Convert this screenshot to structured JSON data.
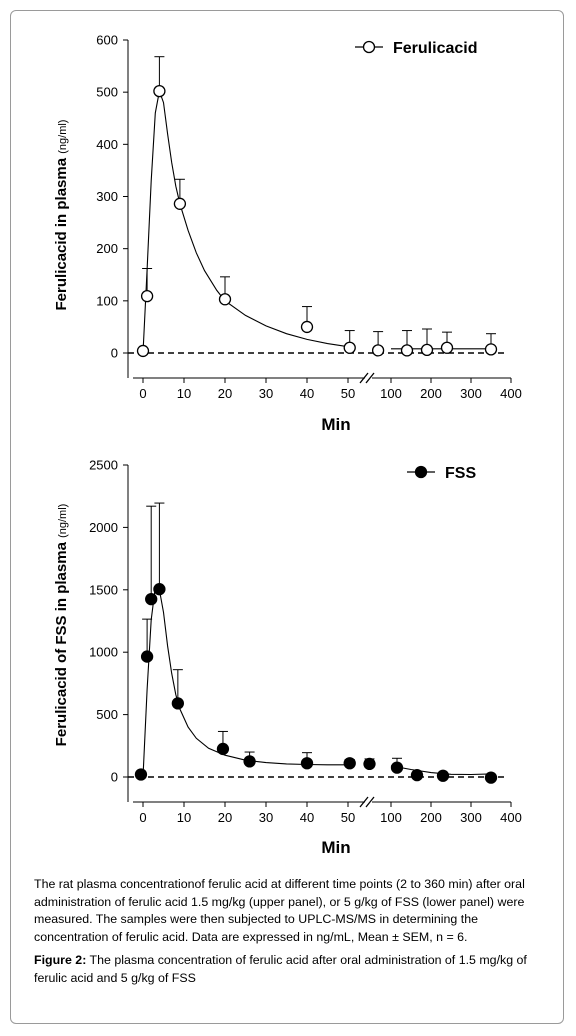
{
  "chart_data": [
    {
      "type": "scatter",
      "ylabel": "Ferulicacid in plasma",
      "yunit": "(ng/ml)",
      "xlabel": "Min",
      "ylim": [
        0,
        600
      ],
      "yticks": [
        "0",
        "100",
        "200",
        "300",
        "400",
        "500",
        "600"
      ],
      "xticks": [
        "0",
        "10",
        "20",
        "30",
        "40",
        "50",
        "100",
        "200",
        "300",
        "400"
      ],
      "x_axis_break": "between 50 and 100 min",
      "baseline": "dashed line at 0",
      "series": [
        {
          "name": "Ferulicacid",
          "marker": "open-circle",
          "points": [
            {
              "x": 0,
              "y": 4,
              "sem": 0
            },
            {
              "x": 1,
              "y": 109,
              "sem": 53
            },
            {
              "x": 4,
              "y": 502,
              "sem": 66
            },
            {
              "x": 9,
              "y": 286,
              "sem": 47
            },
            {
              "x": 20,
              "y": 103,
              "sem": 43
            },
            {
              "x": 40,
              "y": 50,
              "sem": 39
            },
            {
              "x": 52,
              "y": 10,
              "sem": 33
            },
            {
              "x": 85,
              "y": 5,
              "sem": 36
            },
            {
              "x": 140,
              "y": 5,
              "sem": 38
            },
            {
              "x": 190,
              "y": 6,
              "sem": 40
            },
            {
              "x": 240,
              "y": 10,
              "sem": 30
            },
            {
              "x": 350,
              "y": 7,
              "sem": 30
            }
          ],
          "fit_curve": [
            [
              0,
              0
            ],
            [
              1,
              160
            ],
            [
              2,
              330
            ],
            [
              3,
              460
            ],
            [
              4,
              502
            ],
            [
              5,
              480
            ],
            [
              6,
              420
            ],
            [
              7,
              365
            ],
            [
              8,
              320
            ],
            [
              9,
              286
            ],
            [
              11,
              235
            ],
            [
              13,
              192
            ],
            [
              15,
              158
            ],
            [
              18,
              120
            ],
            [
              20,
              100
            ],
            [
              25,
              72
            ],
            [
              30,
              52
            ],
            [
              35,
              37
            ],
            [
              40,
              26
            ],
            [
              45,
              18
            ],
            [
              50,
              12
            ],
            [
              55,
              9
            ],
            [
              60,
              8
            ],
            [
              100,
              8
            ],
            [
              200,
              8
            ],
            [
              300,
              8
            ],
            [
              350,
              8
            ]
          ]
        }
      ]
    },
    {
      "type": "scatter",
      "ylabel": "Ferulicacid of FSS in plasma",
      "yunit": "(ng/ml)",
      "xlabel": "Min",
      "ylim": [
        0,
        2500
      ],
      "yticks": [
        "0",
        "500",
        "1000",
        "1500",
        "2000",
        "2500"
      ],
      "xticks": [
        "0",
        "10",
        "20",
        "30",
        "40",
        "50",
        "100",
        "200",
        "300",
        "400"
      ],
      "x_axis_break": "between 50 and 100 min",
      "baseline": "dashed line at 0",
      "series": [
        {
          "name": "FSS",
          "marker": "filled-circle",
          "points": [
            {
              "x": -0.5,
              "y": 20,
              "sem": 0
            },
            {
              "x": 1,
              "y": 965,
              "sem": 300
            },
            {
              "x": 2,
              "y": 1425,
              "sem": 745
            },
            {
              "x": 4,
              "y": 1505,
              "sem": 690
            },
            {
              "x": 8.5,
              "y": 590,
              "sem": 270
            },
            {
              "x": 19.5,
              "y": 225,
              "sem": 140
            },
            {
              "x": 26,
              "y": 125,
              "sem": 75
            },
            {
              "x": 40,
              "y": 110,
              "sem": 85
            },
            {
              "x": 52,
              "y": 110,
              "sem": 30
            },
            {
              "x": 75,
              "y": 105,
              "sem": 40
            },
            {
              "x": 115,
              "y": 75,
              "sem": 75
            },
            {
              "x": 165,
              "y": 15,
              "sem": 20
            },
            {
              "x": 230,
              "y": 10,
              "sem": 20
            },
            {
              "x": 350,
              "y": -5,
              "sem": 25
            }
          ],
          "fit_curve": [
            [
              0,
              0
            ],
            [
              1,
              700
            ],
            [
              2,
              1260
            ],
            [
              3,
              1520
            ],
            [
              4,
              1500
            ],
            [
              5,
              1320
            ],
            [
              6,
              1050
            ],
            [
              7,
              830
            ],
            [
              8,
              660
            ],
            [
              9,
              545
            ],
            [
              11,
              400
            ],
            [
              13,
              310
            ],
            [
              16,
              230
            ],
            [
              20,
              175
            ],
            [
              25,
              135
            ],
            [
              30,
              115
            ],
            [
              35,
              105
            ],
            [
              40,
              100
            ],
            [
              45,
              98
            ],
            [
              50,
              98
            ],
            [
              55,
              98
            ],
            [
              80,
              97
            ],
            [
              100,
              90
            ],
            [
              150,
              60
            ],
            [
              200,
              35
            ],
            [
              250,
              22
            ],
            [
              300,
              20
            ],
            [
              350,
              25
            ]
          ]
        }
      ]
    }
  ],
  "caption": {
    "text": "The rat plasma concentrationof ferulic acid at different time points (2 to 360 min) after oral administration of ferulic acid 1.5 mg/kg (upper panel), or 5 g/kg of FSS (lower panel) were measured. The samples were then subjected to UPLC-MS/MS in determining the concentration of ferulic acid. Data are expressed in ng/mL, Mean ± SEM, n = 6.",
    "figure_label": "Figure 2:",
    "figure_text": "The plasma concentration of ferulic acid after oral administration of 1.5 mg/kg of ferulic acid and 5 g/kg of FSS"
  }
}
